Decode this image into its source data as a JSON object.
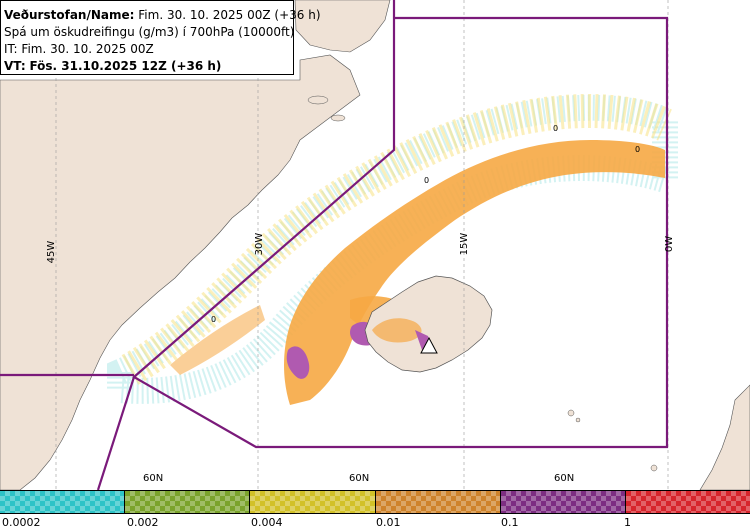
{
  "info": {
    "line1_label": "Veðurstofan/Name:",
    "line1_value": "Fim. 30. 10. 2025 00Z (+36 h)",
    "line2": "Spá um öskudreifingu (g/m3) í 700hPa (10000ft)",
    "line3": "IT: Fim. 30. 10. 2025 00Z",
    "line4_label": "VT:",
    "line4_value": "Fös. 31.10.2025 12Z (+36 h)"
  },
  "map_labels": {
    "lon_45w": "45W",
    "lon_30w": "30W",
    "lon_15w": "15W",
    "lon_0w": "0W",
    "lat_60n": "60N",
    "zero": "0"
  },
  "colors": {
    "land": "#efe2d6",
    "water": "#ffffff",
    "boundary": "#7a1a7a",
    "plume_low": "#f6a844",
    "plume_mid": "#b05ab0",
    "plume_trace": "#f5d85a",
    "plume_faint": "#9fe3e3"
  },
  "legend": {
    "colors": [
      "#2ec3c7",
      "#7ba32b",
      "#d2c128",
      "#cf832b",
      "#7d2d82",
      "#d7252c"
    ],
    "ticks": [
      "0.0002",
      "0.002",
      "0.004",
      "0.01",
      "0.1",
      "1"
    ]
  }
}
